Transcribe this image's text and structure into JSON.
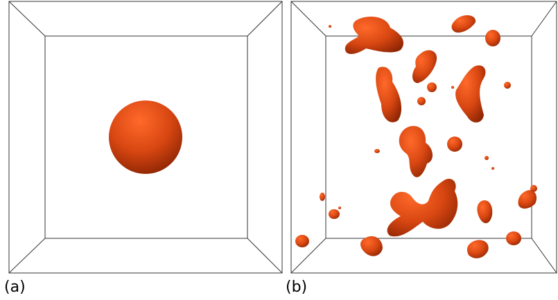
{
  "panels": [
    {
      "label": "(a)"
    },
    {
      "label": "(b)"
    }
  ],
  "colors": {
    "blob": "#d94712",
    "blob_highlight": "#ff6a2a",
    "blob_shadow": "#8f2604",
    "edge": "#333333"
  }
}
